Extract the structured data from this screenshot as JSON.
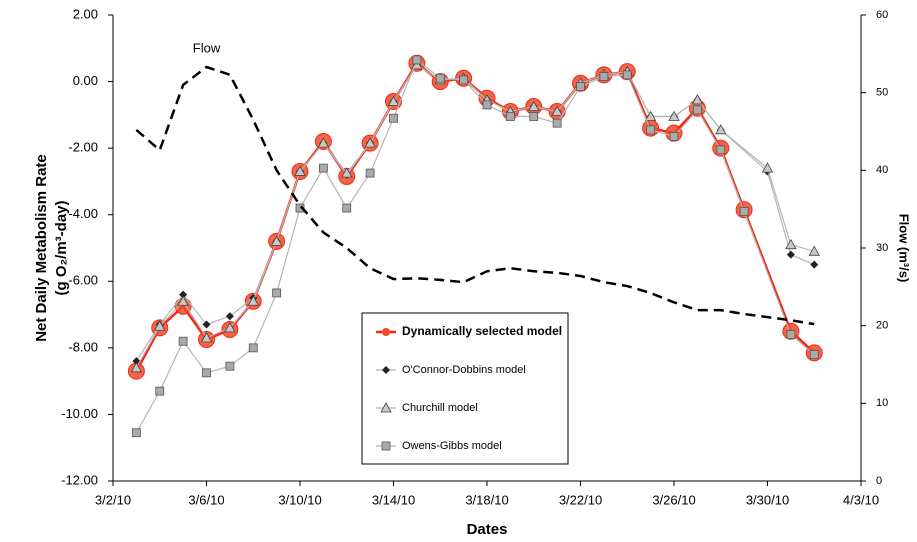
{
  "chart_data": {
    "type": "line",
    "x_title": "Dates",
    "y_title": [
      "Net Daily Metabolism Rate",
      "(g O₂/m³-day)"
    ],
    "y2_title": "Flow (m³/s)",
    "xlim": [
      "3/2/10",
      "4/3/10"
    ],
    "xticks": [
      "3/2/10",
      "3/6/10",
      "3/10/10",
      "3/14/10",
      "3/18/10",
      "3/22/10",
      "3/26/10",
      "3/30/10",
      "4/3/10"
    ],
    "ylim": [
      -12,
      2
    ],
    "yticks": [
      {
        "value": -12,
        "label": "-12.00"
      },
      {
        "value": -10,
        "label": "-10.00"
      },
      {
        "value": -8,
        "label": "-8.00"
      },
      {
        "value": -6,
        "label": "-6.00"
      },
      {
        "value": -4,
        "label": "-4.00"
      },
      {
        "value": -2,
        "label": "-2.00"
      },
      {
        "value": 0,
        "label": "0.00"
      },
      {
        "value": 2,
        "label": "2.00"
      }
    ],
    "y2lim": [
      0,
      60
    ],
    "y2ticks": [
      0,
      10,
      20,
      30,
      40,
      50,
      60
    ],
    "grid": false,
    "series": [
      {
        "name": "Dynamically selected model",
        "color": "#f5280f",
        "marker": "circle",
        "x": [
          "3/3/10",
          "3/4/10",
          "3/5/10",
          "3/6/10",
          "3/7/10",
          "3/8/10",
          "3/9/10",
          "3/10/10",
          "3/11/10",
          "3/12/10",
          "3/13/10",
          "3/14/10",
          "3/15/10",
          "3/16/10",
          "3/17/10",
          "3/18/10",
          "3/19/10",
          "3/20/10",
          "3/21/10",
          "3/22/10",
          "3/23/10",
          "3/24/10",
          "3/25/10",
          "3/26/10",
          "3/27/10",
          "3/28/10",
          "3/29/10",
          "3/31/10",
          "4/1/10"
        ],
        "values": [
          -8.7,
          -7.4,
          -6.75,
          -7.75,
          -7.45,
          -6.6,
          -4.8,
          -2.7,
          -1.8,
          -2.85,
          -1.85,
          -0.6,
          0.55,
          0.0,
          0.1,
          -0.5,
          -0.9,
          -0.75,
          -0.9,
          -0.05,
          0.2,
          0.3,
          -1.4,
          -1.55,
          -0.8,
          -2.0,
          -3.85,
          -7.5,
          -8.15
        ]
      },
      {
        "name": "O'Connor-Dobbins model",
        "color": "#222222",
        "marker": "diamond",
        "x": [
          "3/3/10",
          "3/4/10",
          "3/5/10",
          "3/6/10",
          "3/7/10",
          "3/8/10",
          "3/9/10",
          "3/10/10",
          "3/11/10",
          "3/12/10",
          "3/13/10",
          "3/14/10",
          "3/15/10",
          "3/16/10",
          "3/17/10",
          "3/18/10",
          "3/19/10",
          "3/20/10",
          "3/21/10",
          "3/22/10",
          "3/23/10",
          "3/24/10",
          "3/25/10",
          "3/26/10",
          "3/27/10",
          "3/28/10",
          "3/30/10",
          "3/31/10",
          "4/1/10"
        ],
        "values": [
          -8.4,
          -7.3,
          -6.4,
          -7.3,
          -7.05,
          -6.5,
          -4.8,
          -2.7,
          -1.85,
          -2.8,
          -1.85,
          -0.6,
          0.5,
          0.05,
          0.1,
          -0.55,
          -0.9,
          -0.75,
          -0.9,
          -0.05,
          0.2,
          0.3,
          -1.05,
          -1.05,
          -0.55,
          -1.45,
          -2.7,
          -5.2,
          -5.5
        ]
      },
      {
        "name": "Churchill model",
        "color": "#555555",
        "marker": "triangle",
        "x": [
          "3/3/10",
          "3/4/10",
          "3/5/10",
          "3/6/10",
          "3/7/10",
          "3/8/10",
          "3/9/10",
          "3/10/10",
          "3/11/10",
          "3/12/10",
          "3/13/10",
          "3/14/10",
          "3/15/10",
          "3/16/10",
          "3/17/10",
          "3/18/10",
          "3/19/10",
          "3/20/10",
          "3/21/10",
          "3/22/10",
          "3/23/10",
          "3/24/10",
          "3/25/10",
          "3/26/10",
          "3/27/10",
          "3/28/10",
          "3/30/10",
          "3/31/10",
          "4/1/10"
        ],
        "values": [
          -8.6,
          -7.35,
          -6.6,
          -7.7,
          -7.4,
          -6.6,
          -4.8,
          -2.7,
          -1.85,
          -2.75,
          -1.85,
          -0.6,
          0.5,
          0.05,
          0.1,
          -0.55,
          -0.9,
          -0.75,
          -0.9,
          -0.05,
          0.2,
          0.3,
          -1.05,
          -1.05,
          -0.55,
          -1.45,
          -2.6,
          -4.9,
          -5.1
        ]
      },
      {
        "name": "Owens-Gibbs model",
        "color": "#888888",
        "marker": "square",
        "x": [
          "3/3/10",
          "3/4/10",
          "3/5/10",
          "3/6/10",
          "3/7/10",
          "3/8/10",
          "3/9/10",
          "3/10/10",
          "3/11/10",
          "3/12/10",
          "3/13/10",
          "3/14/10",
          "3/15/10",
          "3/16/10",
          "3/17/10",
          "3/18/10",
          "3/19/10",
          "3/20/10",
          "3/21/10",
          "3/22/10",
          "3/23/10",
          "3/24/10",
          "3/25/10",
          "3/26/10",
          "3/27/10",
          "3/28/10",
          "3/29/10",
          "3/31/10",
          "4/1/10"
        ],
        "values": [
          -10.55,
          -9.3,
          -7.8,
          -8.75,
          -8.55,
          -8.0,
          -6.35,
          -3.8,
          -2.6,
          -3.8,
          -2.75,
          -1.1,
          0.65,
          0.1,
          0.05,
          -0.7,
          -1.05,
          -1.05,
          -1.25,
          -0.15,
          0.15,
          0.2,
          -1.45,
          -1.65,
          -0.85,
          -2.05,
          -3.9,
          -7.6,
          -8.2
        ]
      },
      {
        "name": "Flow",
        "color": "#000000",
        "axis": "y2",
        "dash": true,
        "x": [
          "3/3/10",
          "3/4/10",
          "3/5/10",
          "3/6/10",
          "3/7/10",
          "3/8/10",
          "3/9/10",
          "3/10/10",
          "3/11/10",
          "3/12/10",
          "3/13/10",
          "3/14/10",
          "3/15/10",
          "3/16/10",
          "3/17/10",
          "3/18/10",
          "3/19/10",
          "3/20/10",
          "3/21/10",
          "3/22/10",
          "3/23/10",
          "3/24/10",
          "3/25/10",
          "3/26/10",
          "3/27/10",
          "3/28/10",
          "3/29/10",
          "3/30/10",
          "3/31/10",
          "4/1/10"
        ],
        "values": [
          45.2,
          42.6,
          51,
          53.3,
          52.3,
          46.5,
          40,
          35.5,
          32,
          30,
          27.4,
          26,
          26.1,
          25.9,
          25.6,
          27,
          27.4,
          27,
          26.8,
          26.4,
          25.6,
          25.1,
          24.2,
          23,
          22,
          22,
          21.5,
          21.1,
          20.7,
          20.2
        ]
      }
    ]
  }
}
